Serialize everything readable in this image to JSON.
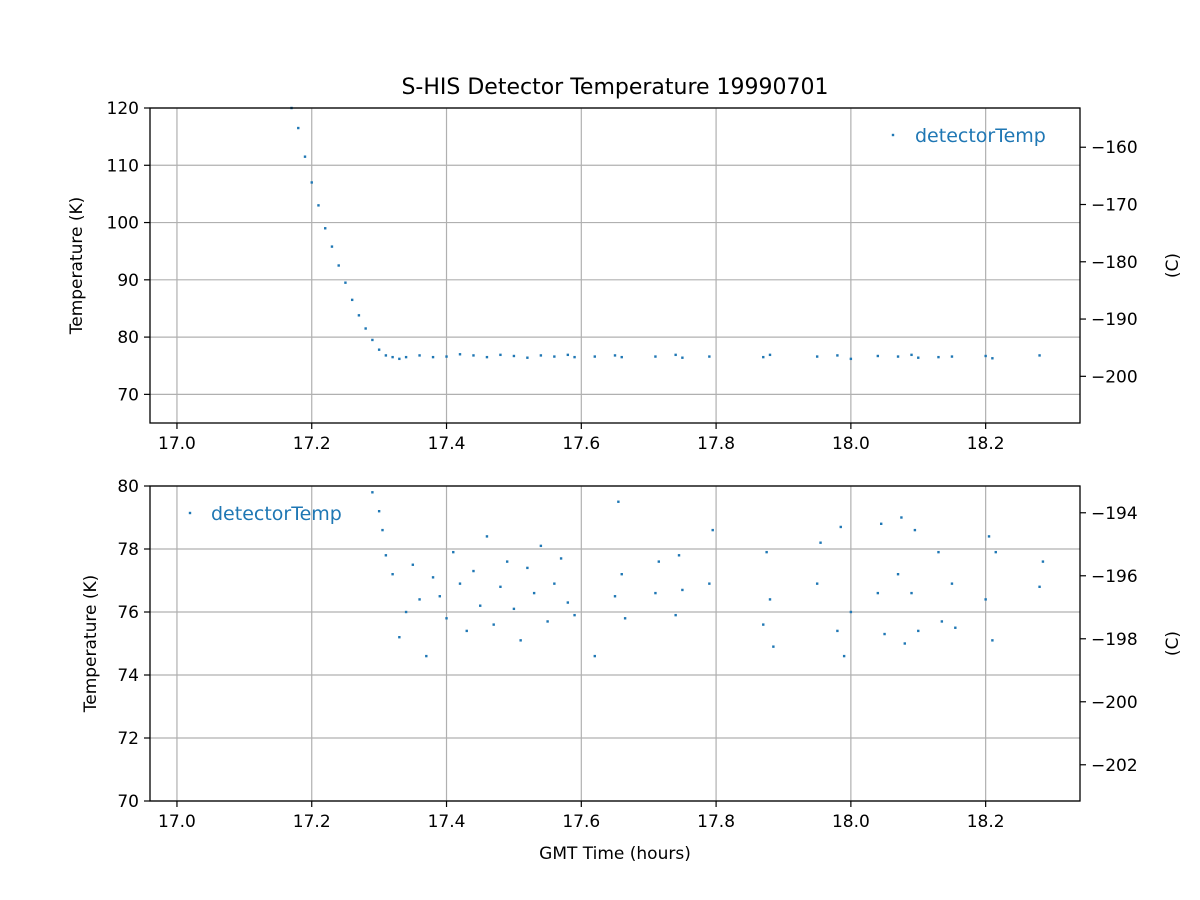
{
  "title": "S-HIS Detector Temperature 19990701",
  "colors": {
    "series": "#1f77b4",
    "grid": "#b0b0b0",
    "axes": "#000000"
  },
  "chart_data": [
    {
      "type": "scatter",
      "xlim": [
        16.96,
        18.34
      ],
      "ylim": [
        65,
        120
      ],
      "x_ticks": [
        17.0,
        17.2,
        17.4,
        17.6,
        17.8,
        18.0,
        18.2
      ],
      "x_tick_labels": [
        "17.0",
        "17.2",
        "17.4",
        "17.6",
        "17.8",
        "18.0",
        "18.2"
      ],
      "y_ticks": [
        70,
        80,
        90,
        100,
        110,
        120
      ],
      "y_tick_labels": [
        "70",
        "80",
        "90",
        "100",
        "110",
        "120"
      ],
      "ylabel": "Temperature (K)",
      "xlabel": "",
      "right_ylabel": "(C)",
      "right_y_ticks": [
        -160,
        -170,
        -180,
        -190,
        -200
      ],
      "right_y_tick_labels": [
        "−160",
        "−170",
        "−180",
        "−190",
        "−200"
      ],
      "grid": true,
      "legend": {
        "position": "top-right",
        "label": "detectorTemp"
      },
      "series": [
        {
          "name": "detectorTemp",
          "points": [
            [
              17.17,
              120.0
            ],
            [
              17.18,
              116.5
            ],
            [
              17.19,
              111.5
            ],
            [
              17.2,
              107.0
            ],
            [
              17.21,
              103.0
            ],
            [
              17.22,
              99.0
            ],
            [
              17.23,
              95.8
            ],
            [
              17.24,
              92.5
            ],
            [
              17.25,
              89.5
            ],
            [
              17.26,
              86.5
            ],
            [
              17.27,
              83.8
            ],
            [
              17.28,
              81.5
            ],
            [
              17.29,
              79.5
            ],
            [
              17.3,
              77.8
            ],
            [
              17.31,
              76.8
            ],
            [
              17.32,
              76.5
            ],
            [
              17.33,
              76.2
            ],
            [
              17.34,
              76.5
            ],
            [
              17.36,
              76.8
            ],
            [
              17.38,
              76.5
            ],
            [
              17.4,
              76.6
            ],
            [
              17.42,
              77.0
            ],
            [
              17.44,
              76.8
            ],
            [
              17.46,
              76.5
            ],
            [
              17.48,
              76.9
            ],
            [
              17.5,
              76.7
            ],
            [
              17.52,
              76.4
            ],
            [
              17.54,
              76.8
            ],
            [
              17.56,
              76.6
            ],
            [
              17.58,
              76.9
            ],
            [
              17.59,
              76.5
            ],
            [
              17.62,
              76.6
            ],
            [
              17.65,
              76.8
            ],
            [
              17.66,
              76.5
            ],
            [
              17.71,
              76.6
            ],
            [
              17.74,
              76.9
            ],
            [
              17.75,
              76.4
            ],
            [
              17.79,
              76.6
            ],
            [
              17.87,
              76.5
            ],
            [
              17.88,
              76.9
            ],
            [
              17.95,
              76.6
            ],
            [
              17.98,
              76.8
            ],
            [
              18.0,
              76.2
            ],
            [
              18.04,
              76.7
            ],
            [
              18.07,
              76.6
            ],
            [
              18.09,
              76.9
            ],
            [
              18.1,
              76.4
            ],
            [
              18.13,
              76.5
            ],
            [
              18.15,
              76.6
            ],
            [
              18.2,
              76.7
            ],
            [
              18.21,
              76.3
            ],
            [
              18.28,
              76.8
            ]
          ]
        }
      ]
    },
    {
      "type": "scatter",
      "xlim": [
        16.96,
        18.34
      ],
      "ylim": [
        70,
        80
      ],
      "x_ticks": [
        17.0,
        17.2,
        17.4,
        17.6,
        17.8,
        18.0,
        18.2
      ],
      "x_tick_labels": [
        "17.0",
        "17.2",
        "17.4",
        "17.6",
        "17.8",
        "18.0",
        "18.2"
      ],
      "y_ticks": [
        70,
        72,
        74,
        76,
        78,
        80
      ],
      "y_tick_labels": [
        "70",
        "72",
        "74",
        "76",
        "78",
        "80"
      ],
      "ylabel": "Temperature (K)",
      "xlabel": "GMT Time (hours)",
      "right_ylabel": "(C)",
      "right_y_ticks": [
        -194,
        -196,
        -198,
        -200,
        -202
      ],
      "right_y_tick_labels": [
        "−194",
        "−196",
        "−198",
        "−200",
        "−202"
      ],
      "grid": true,
      "legend": {
        "position": "top-left",
        "label": "detectorTemp"
      },
      "series": [
        {
          "name": "detectorTemp",
          "points": [
            [
              17.29,
              79.8
            ],
            [
              17.3,
              79.2
            ],
            [
              17.305,
              78.6
            ],
            [
              17.31,
              77.8
            ],
            [
              17.32,
              77.2
            ],
            [
              17.33,
              75.2
            ],
            [
              17.34,
              76.0
            ],
            [
              17.35,
              77.5
            ],
            [
              17.36,
              76.4
            ],
            [
              17.37,
              74.6
            ],
            [
              17.38,
              77.1
            ],
            [
              17.39,
              76.5
            ],
            [
              17.4,
              75.8
            ],
            [
              17.41,
              77.9
            ],
            [
              17.42,
              76.9
            ],
            [
              17.43,
              75.4
            ],
            [
              17.44,
              77.3
            ],
            [
              17.45,
              76.2
            ],
            [
              17.46,
              78.4
            ],
            [
              17.47,
              75.6
            ],
            [
              17.48,
              76.8
            ],
            [
              17.49,
              77.6
            ],
            [
              17.5,
              76.1
            ],
            [
              17.51,
              75.1
            ],
            [
              17.52,
              77.4
            ],
            [
              17.53,
              76.6
            ],
            [
              17.54,
              78.1
            ],
            [
              17.55,
              75.7
            ],
            [
              17.56,
              76.9
            ],
            [
              17.57,
              77.7
            ],
            [
              17.58,
              76.3
            ],
            [
              17.59,
              75.9
            ],
            [
              17.62,
              74.6
            ],
            [
              17.65,
              76.5
            ],
            [
              17.655,
              79.5
            ],
            [
              17.66,
              77.2
            ],
            [
              17.665,
              75.8
            ],
            [
              17.71,
              76.6
            ],
            [
              17.715,
              77.6
            ],
            [
              17.74,
              75.9
            ],
            [
              17.745,
              77.8
            ],
            [
              17.75,
              76.7
            ],
            [
              17.79,
              76.9
            ],
            [
              17.795,
              78.6
            ],
            [
              17.87,
              75.6
            ],
            [
              17.875,
              77.9
            ],
            [
              17.88,
              76.4
            ],
            [
              17.885,
              74.9
            ],
            [
              17.95,
              76.9
            ],
            [
              17.955,
              78.2
            ],
            [
              17.98,
              75.4
            ],
            [
              17.985,
              78.7
            ],
            [
              17.99,
              74.6
            ],
            [
              18.0,
              76.0
            ],
            [
              18.04,
              76.6
            ],
            [
              18.045,
              78.8
            ],
            [
              18.05,
              75.3
            ],
            [
              18.07,
              77.2
            ],
            [
              18.075,
              79.0
            ],
            [
              18.08,
              75.0
            ],
            [
              18.09,
              76.6
            ],
            [
              18.095,
              78.6
            ],
            [
              18.1,
              75.4
            ],
            [
              18.13,
              77.9
            ],
            [
              18.135,
              75.7
            ],
            [
              18.15,
              76.9
            ],
            [
              18.155,
              75.5
            ],
            [
              18.2,
              76.4
            ],
            [
              18.205,
              78.4
            ],
            [
              18.21,
              75.1
            ],
            [
              18.215,
              77.9
            ],
            [
              18.28,
              76.8
            ],
            [
              18.285,
              77.6
            ]
          ]
        }
      ]
    }
  ]
}
